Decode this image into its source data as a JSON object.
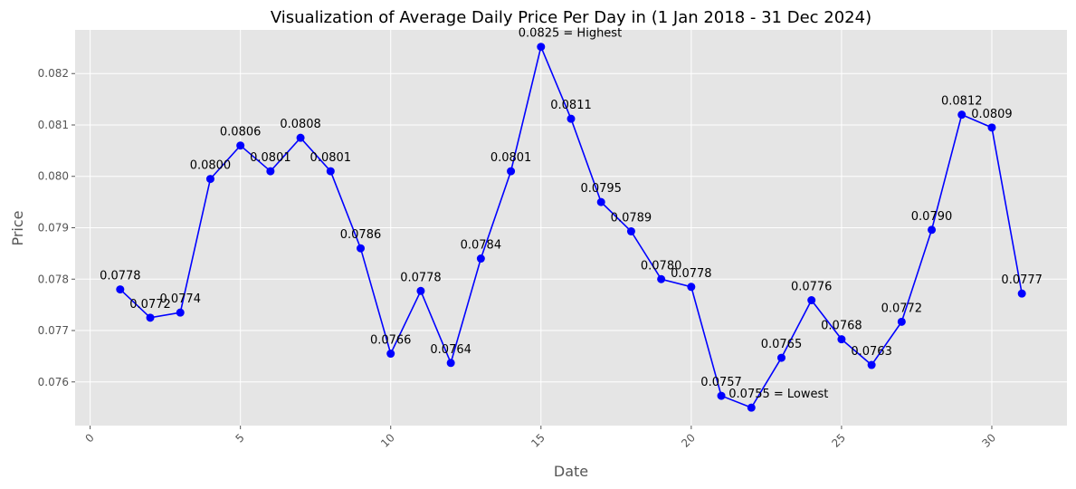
{
  "chart_data": {
    "type": "line",
    "title": "Visualization of Average Daily Price Per Day in (1 Jan 2018 - 31 Dec 2024)",
    "xlabel": "Date",
    "ylabel": "Price",
    "xlim": [
      -0.5,
      32.5
    ],
    "ylim": [
      0.07515,
      0.08285
    ],
    "grid": true,
    "colors": {
      "background": "#e5e5e5",
      "grid": "#ffffff",
      "line": "#0000ff",
      "marker": "#0000ff"
    },
    "x_ticks": [
      0,
      5,
      10,
      15,
      20,
      25,
      30
    ],
    "x_tick_labels": [
      "0",
      "5",
      "10",
      "15",
      "20",
      "25",
      "30"
    ],
    "y_ticks": [
      0.076,
      0.077,
      0.078,
      0.079,
      0.08,
      0.081,
      0.082
    ],
    "y_tick_labels": [
      "0.076",
      "0.077",
      "0.078",
      "0.079",
      "0.080",
      "0.081",
      "0.082"
    ],
    "series": [
      {
        "x": [
          1,
          2,
          3,
          4,
          5,
          6,
          7,
          8,
          9,
          10,
          11,
          12,
          13,
          14,
          15,
          16,
          17,
          18,
          19,
          20,
          21,
          22,
          23,
          24,
          25,
          26,
          27,
          28,
          29,
          30,
          31
        ],
        "values": [
          0.0778,
          0.07725,
          0.07735,
          0.07995,
          0.0806,
          0.0801,
          0.08075,
          0.0801,
          0.0786,
          0.07655,
          0.07777,
          0.07637,
          0.0784,
          0.0801,
          0.08252,
          0.08112,
          0.0795,
          0.07893,
          0.078,
          0.07785,
          0.07573,
          0.0755,
          0.07647,
          0.07759,
          0.07683,
          0.07633,
          0.07717,
          0.07896,
          0.0812,
          0.08095,
          0.07772
        ],
        "labels": [
          "0.0778",
          "0.0772",
          "0.0774",
          "0.0800",
          "0.0806",
          "0.0801",
          "0.0808",
          "0.0801",
          "0.0786",
          "0.0766",
          "0.0778",
          "0.0764",
          "0.0784",
          "0.0801",
          "0.0825 = Highest",
          "0.0811",
          "0.0795",
          "0.0789",
          "0.0780",
          "0.0778",
          "0.0757",
          "0.0755 = Lowest",
          "0.0765",
          "0.0776",
          "0.0768",
          "0.0763",
          "0.0772",
          "0.0790",
          "0.0812",
          "0.0809",
          "0.0777"
        ]
      }
    ]
  }
}
